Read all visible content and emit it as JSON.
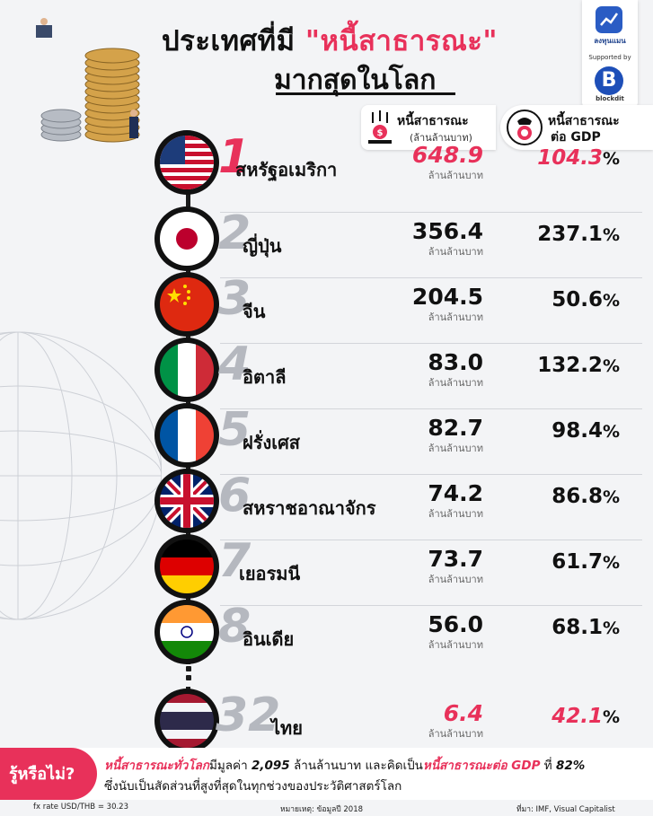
{
  "title": {
    "line1_prefix": "ประเทศที่มี ",
    "line1_highlight": "\"หนี้สาธารณะ\"",
    "line2": "มากสุดในโลก"
  },
  "brand": {
    "name": "ลงทุนแมน",
    "supported_by": "Supported by",
    "partner_letter": "B",
    "partner_name": "blockdit"
  },
  "headers": {
    "debt_title": "หนี้สาธารณะ",
    "debt_unit": "(ล้านล้านบาท)",
    "gdp_title_1": "หนี้สาธารณะ",
    "gdp_title_2": "ต่อ GDP"
  },
  "colors": {
    "accent": "#e8315a",
    "rank_gray": "#b5b8bf"
  },
  "countries": [
    {
      "rank": "1",
      "name": "สหรัฐอเมริกา",
      "debt": "648.9",
      "unit": "ล้านล้านบาท",
      "gdp": "104.3",
      "pct": "%",
      "flag": "us-flag-icon"
    },
    {
      "rank": "2",
      "name": "ญี่ปุ่น",
      "debt": "356.4",
      "unit": "ล้านล้านบาท",
      "gdp": "237.1",
      "pct": "%",
      "flag": "japan-flag-icon"
    },
    {
      "rank": "3",
      "name": "จีน",
      "debt": "204.5",
      "unit": "ล้านล้านบาท",
      "gdp": "50.6",
      "pct": "%",
      "flag": "china-flag-icon"
    },
    {
      "rank": "4",
      "name": "อิตาลี",
      "debt": "83.0",
      "unit": "ล้านล้านบาท",
      "gdp": "132.2",
      "pct": "%",
      "flag": "italy-flag-icon"
    },
    {
      "rank": "5",
      "name": "ฝรั่งเศส",
      "debt": "82.7",
      "unit": "ล้านล้านบาท",
      "gdp": "98.4",
      "pct": "%",
      "flag": "france-flag-icon"
    },
    {
      "rank": "6",
      "name": "สหราชอาณาจักร",
      "debt": "74.2",
      "unit": "ล้านล้านบาท",
      "gdp": "86.8",
      "pct": "%",
      "flag": "uk-flag-icon"
    },
    {
      "rank": "7",
      "name": "เยอรมนี",
      "debt": "73.7",
      "unit": "ล้านล้านบาท",
      "gdp": "61.7",
      "pct": "%",
      "flag": "germany-flag-icon"
    },
    {
      "rank": "8",
      "name": "อินเดีย",
      "debt": "56.0",
      "unit": "ล้านล้านบาท",
      "gdp": "68.1",
      "pct": "%",
      "flag": "india-flag-icon"
    },
    {
      "rank": "32",
      "name": "ไทย",
      "debt": "6.4",
      "unit": "ล้านล้านบาท",
      "gdp": "42.1",
      "pct": "%",
      "flag": "thailand-flag-icon"
    }
  ],
  "fact": {
    "badge": "รู้หรือไม่?",
    "l1_a": "หนี้สาธารณะทั่วโลก",
    "l1_b": "มีมูลค่า ",
    "l1_c": "2,095",
    "l1_d": " ล้านล้านบาท",
    "l1_e": " และคิดเป็น",
    "l1_f": "หนี้สาธารณะต่อ GDP",
    "l1_g": " ที่ ",
    "l1_h": "82%",
    "line2": "ซึ่งนับเป็นสัดส่วนที่สูงที่สุดในทุกช่วงของประวัติศาสตร์โลก"
  },
  "footer": {
    "fx": "fx rate USD/THB = 30.23",
    "note": "หมายเหตุ: ข้อมูลปี 2018",
    "source": "ที่มา: IMF, Visual Capitalist"
  }
}
